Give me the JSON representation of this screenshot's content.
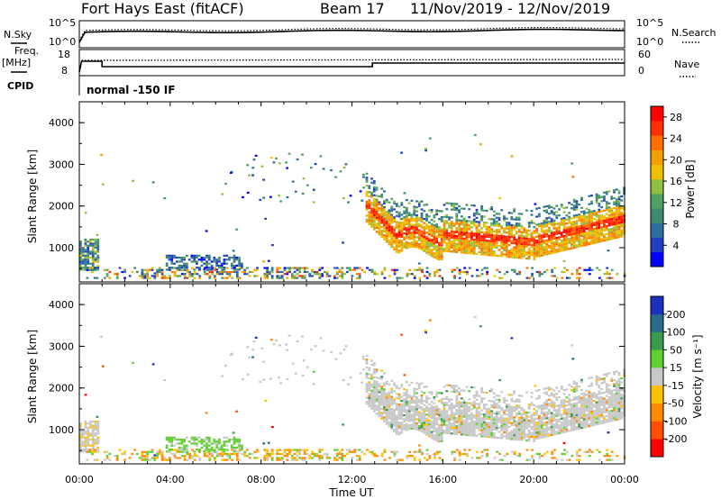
{
  "header": {
    "station": "Fort Hays East (fitACF)",
    "beam": "Beam 17",
    "date_range": "11/Nov/2019 - 12/Nov/2019"
  },
  "panels": {
    "nsky_label": "N.Sky",
    "nsearch_label": "N.Search",
    "freq_label": "Freq.",
    "freq_unit": "[MHz]",
    "nave_label": "Nave",
    "cpid_label": "CPID",
    "cpid_value": "normal -150 IF",
    "nsky_ticks": [
      "10^5",
      "10^0"
    ],
    "nsearch_ticks": [
      "10^5",
      "10^0"
    ],
    "freq_ticks": [
      "18",
      "8"
    ],
    "nave_ticks": [
      "60",
      "0"
    ]
  },
  "colors": {
    "power": [
      "#0000ff",
      "#2040c0",
      "#2e6e9e",
      "#3e8a70",
      "#50a060",
      "#90c040",
      "#f0c000",
      "#f0a000",
      "#ff7000",
      "#ff3000",
      "#ff0000"
    ],
    "velocity": [
      "#ff0000",
      "#ff5000",
      "#ff8c00",
      "#ffc000",
      "#c8c8c8",
      "#60d030",
      "#3a9a50",
      "#2a6a8a",
      "#1a30c0"
    ]
  },
  "chart_data": [
    {
      "type": "heatmap",
      "name": "Power",
      "ylabel": "Slant Range [km]",
      "colorbar_label": "Power [dB]",
      "colorbar_ticks": [
        "4",
        "8",
        "12",
        "16",
        "20",
        "24",
        "28"
      ],
      "xlabel": "Time UT",
      "xticks": [
        "00:00",
        "04:00",
        "08:00",
        "12:00",
        "16:00",
        "20:00",
        "00:00"
      ],
      "yticks": [
        "1000",
        "2000",
        "3000",
        "4000"
      ],
      "xlim": [
        0,
        24
      ],
      "ylim": [
        180,
        4500
      ],
      "zlim": [
        0,
        30
      ]
    },
    {
      "type": "heatmap",
      "name": "Velocity",
      "ylabel": "Slant Range [km]",
      "colorbar_label": "Velocity [m s⁻¹]",
      "colorbar_ticks": [
        "200",
        "100",
        "50",
        "15",
        "-15",
        "-50",
        "-100",
        "-200"
      ],
      "xlabel": "Time UT",
      "xticks": [
        "00:00",
        "04:00",
        "08:00",
        "12:00",
        "16:00",
        "20:00",
        "00:00"
      ],
      "yticks": [
        "1000",
        "2000",
        "3000",
        "4000"
      ],
      "xlim": [
        0,
        24
      ],
      "ylim": [
        180,
        4500
      ]
    }
  ]
}
